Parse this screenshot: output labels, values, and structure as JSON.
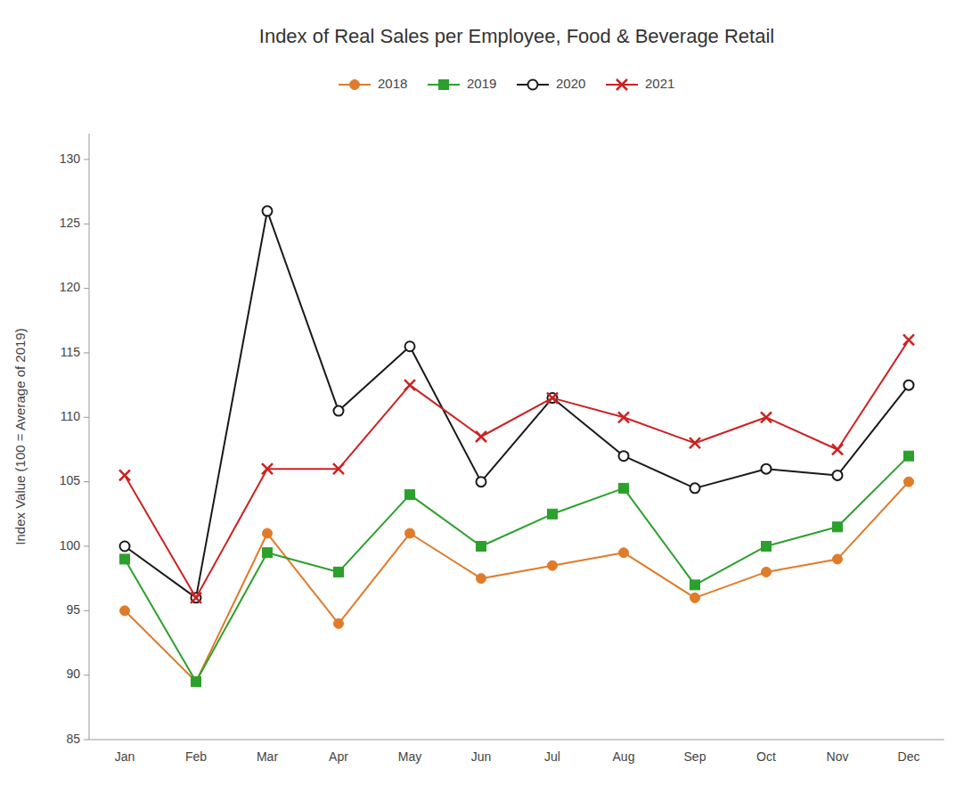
{
  "chart_data": {
    "type": "line",
    "title": "Index of Real Sales per Employee, Food & Beverage Retail",
    "ylabel": "Index Value (100 = Average of 2019)",
    "categories": [
      "Jan",
      "Feb",
      "Mar",
      "Apr",
      "May",
      "Jun",
      "Jul",
      "Aug",
      "Sep",
      "Oct",
      "Nov",
      "Dec"
    ],
    "series": [
      {
        "name": "2018",
        "color": "#E07B2A",
        "marker": "circle",
        "values": [
          95.0,
          89.5,
          101.0,
          94.0,
          101.0,
          97.5,
          98.5,
          99.5,
          96.0,
          98.0,
          99.0,
          105.0
        ]
      },
      {
        "name": "2019",
        "color": "#2CA02C",
        "marker": "square",
        "values": [
          99.0,
          89.5,
          99.5,
          98.0,
          104.0,
          100.0,
          102.5,
          104.5,
          97.0,
          100.0,
          101.5,
          107.0
        ]
      },
      {
        "name": "2020",
        "color": "#1A1A1A",
        "marker": "open-circle",
        "values": [
          100.0,
          96.0,
          126.0,
          110.5,
          115.5,
          105.0,
          111.5,
          107.0,
          104.5,
          106.0,
          105.5,
          112.5
        ]
      },
      {
        "name": "2021",
        "color": "#CC2222",
        "marker": "x",
        "values": [
          105.5,
          96.0,
          106.0,
          106.0,
          112.5,
          108.5,
          111.5,
          110.0,
          108.0,
          110.0,
          107.5,
          116.0
        ]
      }
    ],
    "ylim": [
      85,
      132
    ],
    "yticks": [
      85,
      90,
      95,
      100,
      105,
      110,
      115,
      120,
      125,
      130
    ],
    "grid": false,
    "legend": "top"
  }
}
